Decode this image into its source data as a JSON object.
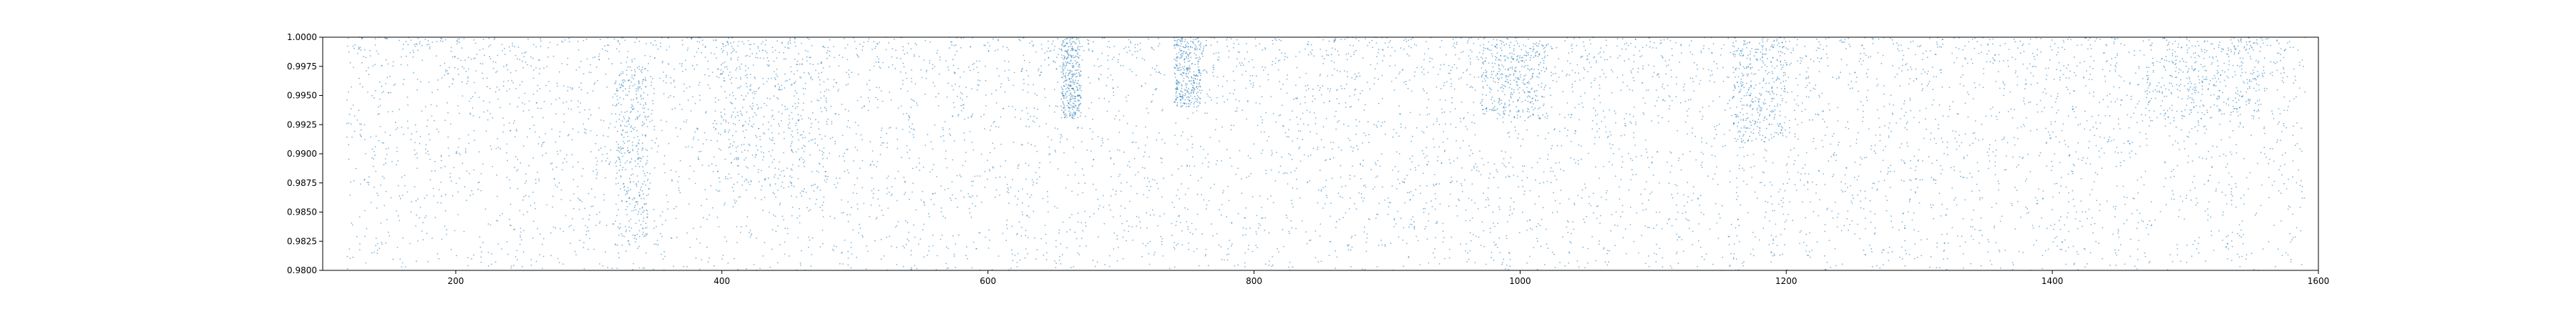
{
  "chart_data": {
    "type": "scatter",
    "title": "",
    "xlabel": "",
    "ylabel": "",
    "xlim": [
      100,
      1600
    ],
    "ylim": [
      0.98,
      1.0
    ],
    "x_ticks": [
      200,
      400,
      600,
      800,
      1000,
      1200,
      1400,
      1600
    ],
    "x_tick_labels": [
      "200",
      "400",
      "600",
      "800",
      "1000",
      "1200",
      "1400",
      "1600"
    ],
    "y_ticks": [
      0.98,
      0.9825,
      0.985,
      0.9875,
      0.99,
      0.9925,
      0.995,
      0.9975,
      1.0
    ],
    "y_tick_labels": [
      "0.9800",
      "0.9825",
      "0.9850",
      "0.9875",
      "0.9900",
      "0.9925",
      "0.9950",
      "0.9975",
      "1.0000"
    ],
    "grid": false,
    "legend": "none",
    "series": [
      {
        "color": "#1f77b4",
        "marker": "point",
        "x_range": [
          118,
          1590
        ],
        "y_range": [
          0.98,
          1.0
        ],
        "point_count_approx": 9000,
        "notable_density_bands": [
          {
            "x": [
              320,
              345
            ],
            "y": [
              0.9825,
              0.9975
            ]
          },
          {
            "x": [
              395,
              480
            ],
            "y": [
              0.987,
              1.0
            ]
          },
          {
            "x": [
              655,
              670
            ],
            "y": [
              0.993,
              1.0
            ]
          },
          {
            "x": [
              740,
              760
            ],
            "y": [
              0.994,
              1.0
            ]
          },
          {
            "x": [
              970,
              1020
            ],
            "y": [
              0.993,
              0.9995
            ]
          },
          {
            "x": [
              1160,
              1200
            ],
            "y": [
              0.991,
              1.0
            ]
          },
          {
            "x": [
              1470,
              1560
            ],
            "y": [
              0.993,
              1.0
            ]
          }
        ],
        "sparse_gaps_x": [
          [
            733,
            738
          ],
          [
            1475,
            1485
          ]
        ]
      }
    ]
  }
}
